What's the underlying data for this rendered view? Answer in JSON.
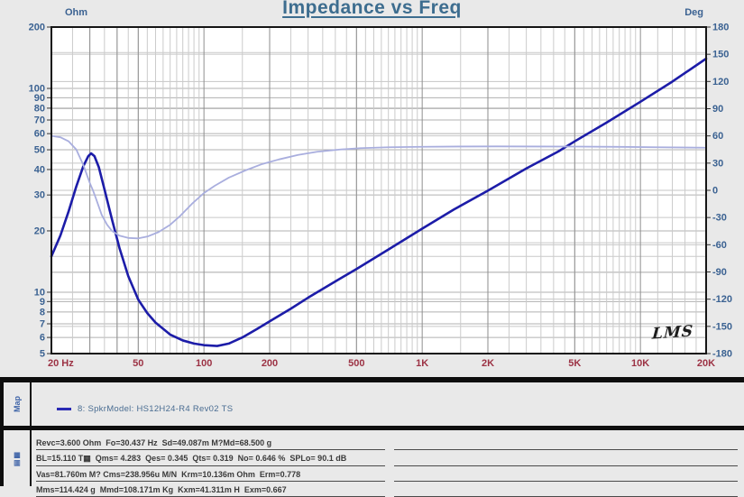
{
  "chart": {
    "title": "Impedance vs Freq",
    "logo": "LMS"
  },
  "chart_data": {
    "type": "line",
    "title": "Impedance vs Freq",
    "x_axis": {
      "label": "Hz",
      "scale": "log",
      "min": 20,
      "max": 20000,
      "ticks": [
        {
          "v": 20,
          "label": "20 Hz"
        },
        {
          "v": 50,
          "label": "50"
        },
        {
          "v": 100,
          "label": "100"
        },
        {
          "v": 200,
          "label": "200"
        },
        {
          "v": 500,
          "label": "500"
        },
        {
          "v": 1000,
          "label": "1K"
        },
        {
          "v": 2000,
          "label": "2K"
        },
        {
          "v": 5000,
          "label": "5K"
        },
        {
          "v": 10000,
          "label": "10K"
        },
        {
          "v": 20000,
          "label": "20K"
        }
      ],
      "major_gridlines": [
        30,
        40,
        50,
        100,
        200,
        500,
        1000,
        2000,
        5000,
        10000
      ],
      "minor_step_rules": [
        [
          20,
          100,
          5
        ],
        [
          100,
          1000,
          50
        ],
        [
          1000,
          10000,
          500
        ],
        [
          10000,
          20000,
          2000
        ]
      ]
    },
    "y_left": {
      "label": "Ohm",
      "scale": "log",
      "min": 5,
      "max": 200,
      "ticks": [
        200,
        100,
        90,
        80,
        70,
        60,
        50,
        40,
        30,
        20,
        10,
        9,
        8,
        7,
        6,
        5
      ],
      "minor_gridlines": [
        12.5,
        15,
        17.5,
        150
      ]
    },
    "y_right": {
      "label": "Deg",
      "scale": "linear",
      "min": -180,
      "max": 180,
      "tick_step": 30
    },
    "grid": true,
    "series": [
      {
        "name": "Impedance (Ohm)",
        "axis": "left",
        "color": "#1c1ca8",
        "width": 2.6,
        "points": [
          [
            20,
            15
          ],
          [
            22,
            19
          ],
          [
            24,
            25
          ],
          [
            26,
            33
          ],
          [
            28,
            41.5
          ],
          [
            29.5,
            46.5
          ],
          [
            30.4,
            48
          ],
          [
            31.5,
            46.5
          ],
          [
            33,
            41
          ],
          [
            35,
            32
          ],
          [
            38,
            22.5
          ],
          [
            41,
            16.5
          ],
          [
            45,
            12
          ],
          [
            50,
            9.2
          ],
          [
            55,
            7.9
          ],
          [
            60,
            7.1
          ],
          [
            70,
            6.2
          ],
          [
            80,
            5.8
          ],
          [
            90,
            5.6
          ],
          [
            100,
            5.5
          ],
          [
            115,
            5.45
          ],
          [
            130,
            5.6
          ],
          [
            150,
            6.0
          ],
          [
            175,
            6.6
          ],
          [
            200,
            7.2
          ],
          [
            250,
            8.3
          ],
          [
            300,
            9.4
          ],
          [
            400,
            11.3
          ],
          [
            500,
            13
          ],
          [
            700,
            16.2
          ],
          [
            1000,
            20.5
          ],
          [
            1400,
            25.5
          ],
          [
            2000,
            31.5
          ],
          [
            3000,
            40.5
          ],
          [
            4200,
            49
          ],
          [
            5000,
            55
          ],
          [
            7000,
            68
          ],
          [
            10000,
            86
          ],
          [
            14000,
            108
          ],
          [
            20000,
            140
          ]
        ]
      },
      {
        "name": "Phase (Deg)",
        "axis": "right",
        "color": "#a9aede",
        "width": 1.8,
        "points": [
          [
            20,
            60
          ],
          [
            22,
            58.5
          ],
          [
            24,
            54
          ],
          [
            26,
            45
          ],
          [
            28,
            28
          ],
          [
            30,
            8
          ],
          [
            31,
            0
          ],
          [
            32,
            -9
          ],
          [
            34,
            -27
          ],
          [
            36,
            -38
          ],
          [
            38,
            -45
          ],
          [
            41,
            -50
          ],
          [
            45,
            -52.5
          ],
          [
            50,
            -53
          ],
          [
            55,
            -51
          ],
          [
            62,
            -46
          ],
          [
            70,
            -38
          ],
          [
            78,
            -28
          ],
          [
            88,
            -15
          ],
          [
            100,
            -3
          ],
          [
            112,
            5
          ],
          [
            130,
            14
          ],
          [
            155,
            22
          ],
          [
            185,
            29
          ],
          [
            220,
            34
          ],
          [
            270,
            39
          ],
          [
            330,
            42.5
          ],
          [
            420,
            45
          ],
          [
            520,
            46.5
          ],
          [
            700,
            47.5
          ],
          [
            1000,
            48
          ],
          [
            1500,
            48.3
          ],
          [
            2200,
            48.4
          ],
          [
            3500,
            48.3
          ],
          [
            5000,
            48.2
          ],
          [
            8000,
            47.9
          ],
          [
            12000,
            47.5
          ],
          [
            20000,
            47
          ]
        ]
      }
    ]
  },
  "legend": {
    "sidebar_label": "Map",
    "items": [
      {
        "swatch_color": "#2a2ab4",
        "label": "8: SpkrModel: HS12H24-R4 Rev02 TS"
      }
    ]
  },
  "params": {
    "sidebar_label": "▤▦",
    "lines": [
      "Revc=3.600 Ohm  Fo=30.437 Hz  Sd=49.087m M?Md=68.500 g",
      "BL=15.110 T▦  Qms= 4.283  Qes= 0.345  Qts= 0.319  No= 0.646 %  SPLo= 90.1 dB",
      "Vas=81.760m M? Cms=238.956u M/N  Krm=10.136m Ohm  Erm=0.778",
      "Mms=114.424 g  Mmd=108.171m Kg  Kxm=41.311m H  Exm=0.667"
    ]
  },
  "colors": {
    "title": "#3d6d8f",
    "axis_numbers": "#3b6292",
    "freq_labels": "#9c3244",
    "impedance_curve": "#1c1ca8",
    "phase_curve": "#a9aede",
    "plot_background": "#ffffff",
    "page_background": "#e9e9e9"
  }
}
